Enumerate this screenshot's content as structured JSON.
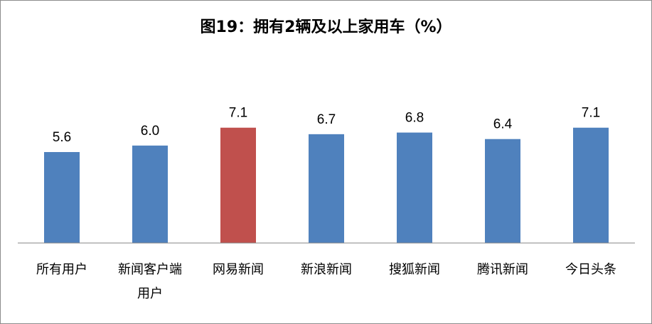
{
  "chart_data": {
    "type": "bar",
    "title": "图19：拥有2辆及以上家用车（%）",
    "categories": [
      "所有用户",
      "新闻客户端用户",
      "网易新闻",
      "新浪新闻",
      "搜狐新闻",
      "腾讯新闻",
      "今日头条"
    ],
    "category_lines": [
      [
        "所有用户"
      ],
      [
        "新闻客户端",
        "用户"
      ],
      [
        "网易新闻"
      ],
      [
        "新浪新闻"
      ],
      [
        "搜狐新闻"
      ],
      [
        "腾讯新闻"
      ],
      [
        "今日头条"
      ]
    ],
    "values": [
      5.6,
      6.0,
      7.1,
      6.7,
      6.8,
      6.4,
      7.1
    ],
    "value_labels": [
      "5.6",
      "6.0",
      "7.1",
      "6.7",
      "6.8",
      "6.4",
      "7.1"
    ],
    "ylim": [
      0,
      12.25
    ],
    "grid": false,
    "colors": {
      "default": "#4f81bd",
      "highlight": "#c0504d",
      "axis": "#868686"
    },
    "highlight_index": 2
  }
}
